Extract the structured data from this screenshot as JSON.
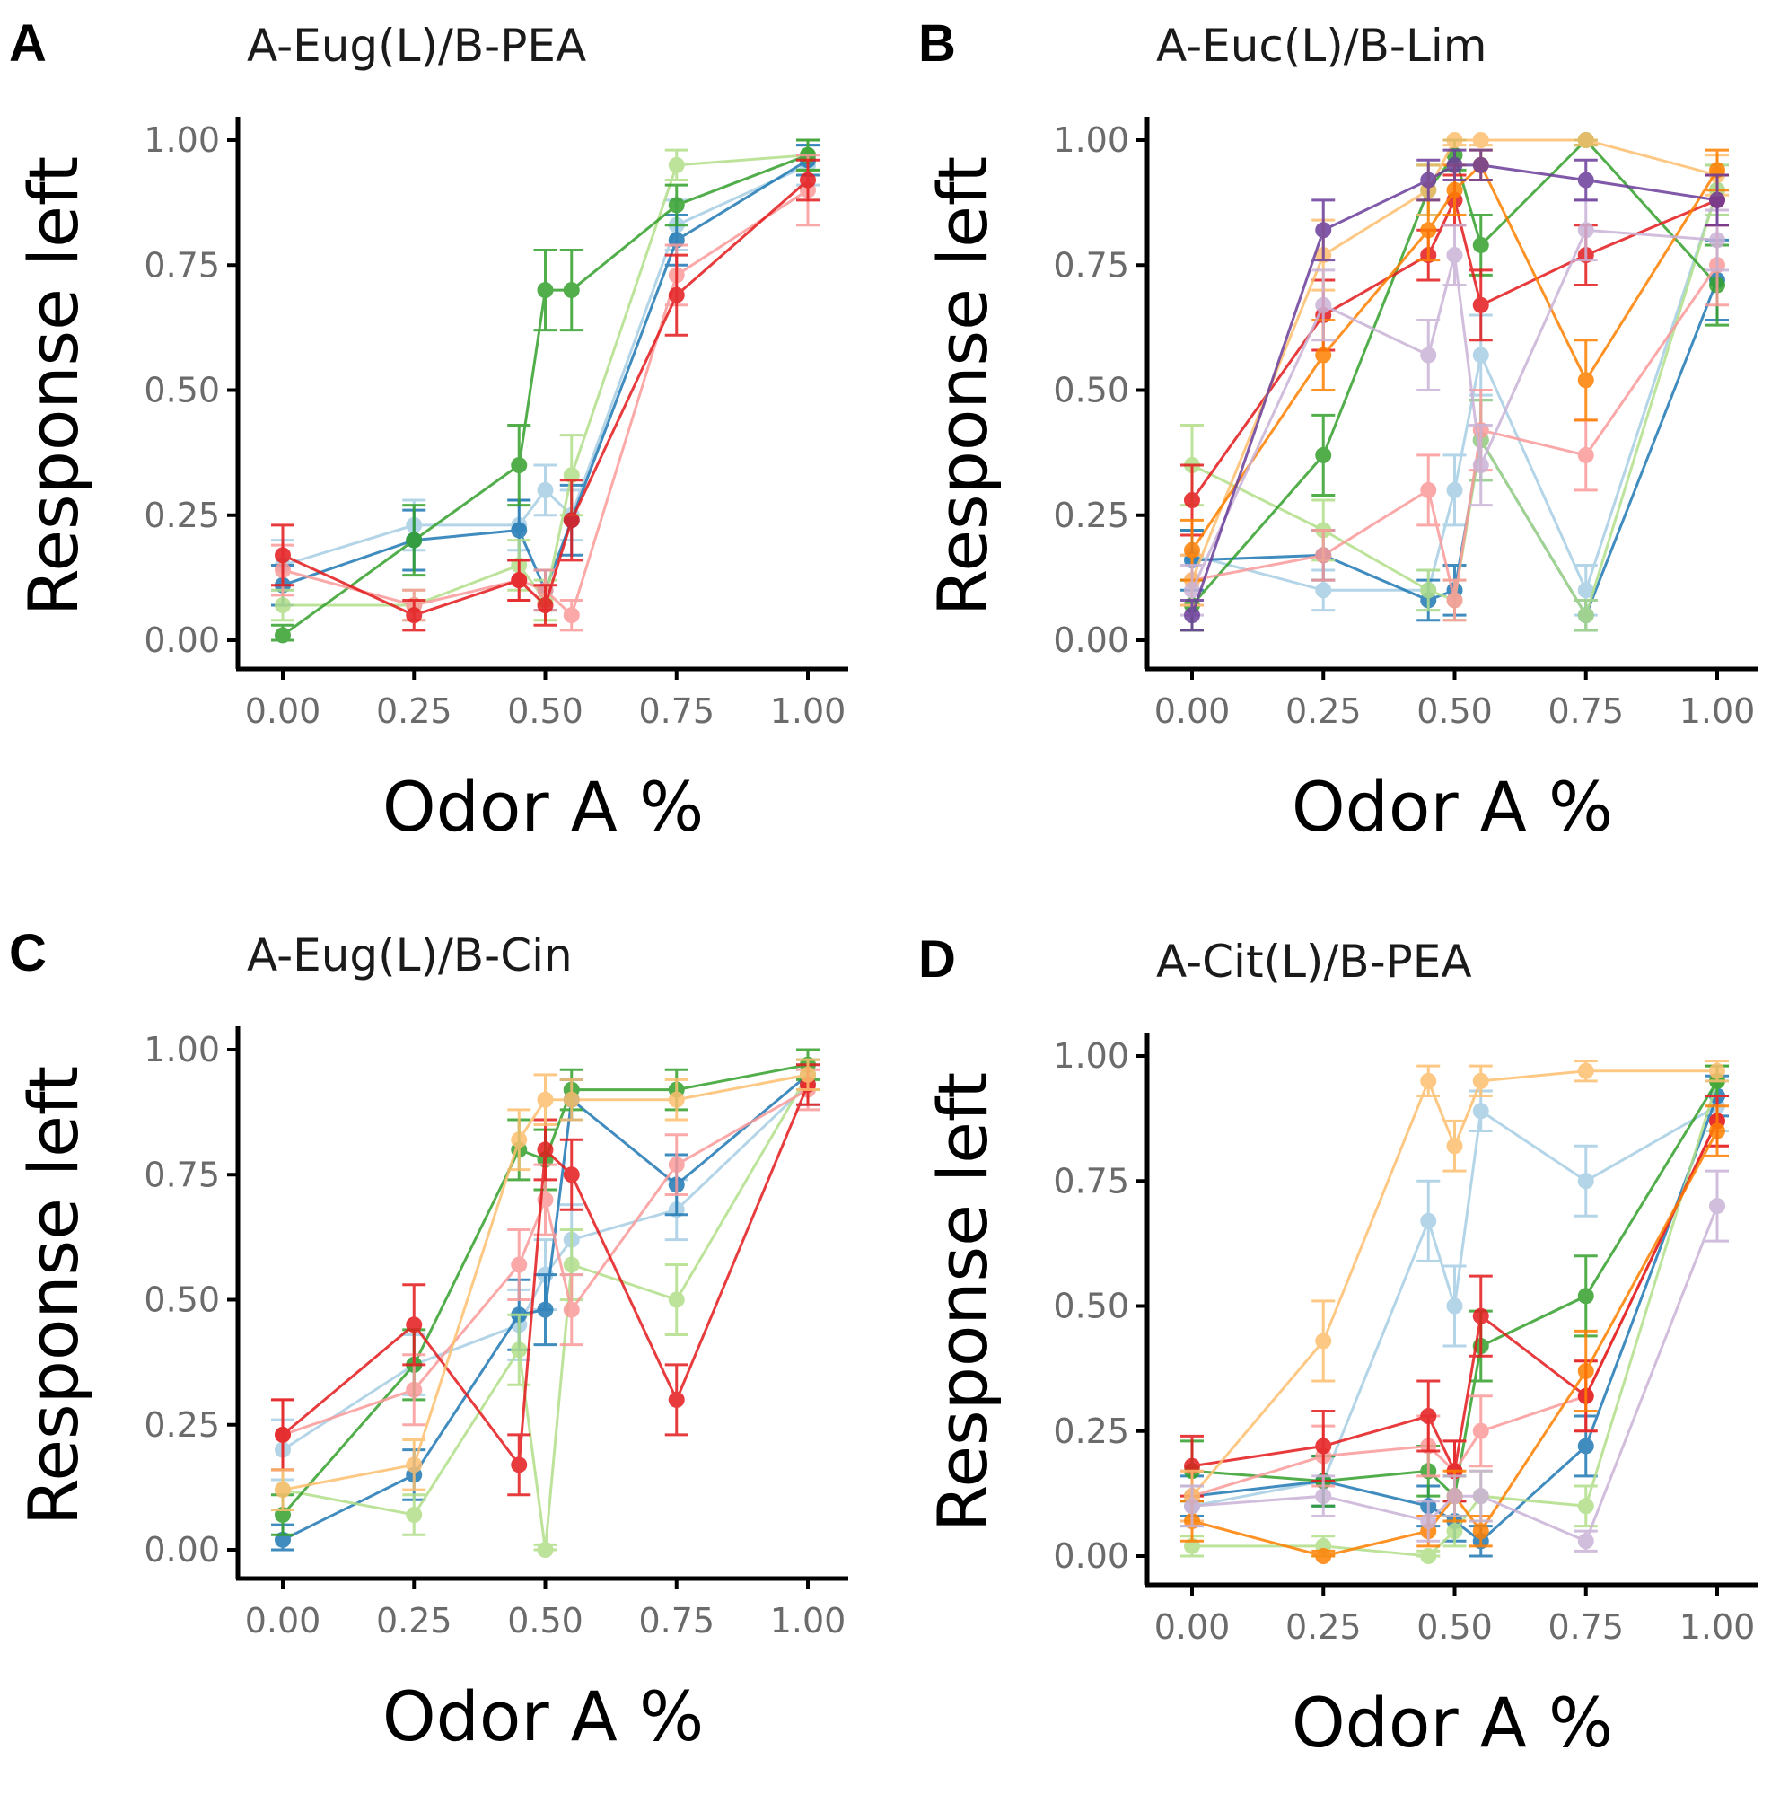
{
  "chart_data": [
    {
      "panel_label": "A",
      "type": "line",
      "title": "A-Eug(L)/B-PEA",
      "xlabel": "Odor A %",
      "ylabel": "Response left",
      "xlim": [
        0,
        1
      ],
      "ylim": [
        0,
        1
      ],
      "x_ticks": [
        "0.00",
        "0.25",
        "0.50",
        "0.75",
        "1.00"
      ],
      "y_ticks": [
        "0.00",
        "0.25",
        "0.50",
        "0.75",
        "1.00"
      ],
      "x": [
        0,
        0.25,
        0.45,
        0.5,
        0.55,
        0.75,
        1.0
      ],
      "series": [
        {
          "name": "light blue",
          "color": "#a6cee3",
          "values": [
            0.15,
            0.23,
            0.23,
            0.3,
            0.25,
            0.83,
            0.95
          ],
          "err": [
            0.05,
            0.05,
            0.05,
            0.05,
            0.05,
            0.05,
            0.04
          ]
        },
        {
          "name": "blue",
          "color": "#1f78b4",
          "values": [
            0.11,
            0.2,
            0.22,
            0.1,
            0.24,
            0.8,
            0.96
          ],
          "err": [
            0.04,
            0.06,
            0.06,
            0.04,
            0.07,
            0.05,
            0.03
          ]
        },
        {
          "name": "light green",
          "color": "#b2df8a",
          "values": [
            0.07,
            0.07,
            0.15,
            0.08,
            0.33,
            0.95,
            0.97
          ],
          "err": [
            0.03,
            0.03,
            0.05,
            0.04,
            0.08,
            0.03,
            0.03
          ]
        },
        {
          "name": "green",
          "color": "#33a02c",
          "values": [
            0.01,
            0.2,
            0.35,
            0.7,
            0.7,
            0.87,
            0.97
          ],
          "err": [
            0.02,
            0.07,
            0.08,
            0.08,
            0.08,
            0.04,
            0.03
          ]
        },
        {
          "name": "pink",
          "color": "#fb9a99",
          "values": [
            0.14,
            0.07,
            0.12,
            0.1,
            0.05,
            0.73,
            0.9
          ],
          "err": [
            0.05,
            0.03,
            0.04,
            0.04,
            0.03,
            0.06,
            0.07
          ]
        },
        {
          "name": "red",
          "color": "#e31a1c",
          "values": [
            0.17,
            0.05,
            0.12,
            0.07,
            0.24,
            0.69,
            0.92
          ],
          "err": [
            0.06,
            0.03,
            0.04,
            0.04,
            0.08,
            0.08,
            0.04
          ]
        }
      ]
    },
    {
      "panel_label": "B",
      "type": "line",
      "title": "A-Euc(L)/B-Lim",
      "xlabel": "Odor A %",
      "ylabel": "Response left",
      "xlim": [
        0,
        1
      ],
      "ylim": [
        0,
        1
      ],
      "x_ticks": [
        "0.00",
        "0.25",
        "0.50",
        "0.75",
        "1.00"
      ],
      "y_ticks": [
        "0.00",
        "0.25",
        "0.50",
        "0.75",
        "1.00"
      ],
      "x": [
        0,
        0.25,
        0.45,
        0.5,
        0.55,
        0.75,
        1.0
      ],
      "series": [
        {
          "name": "light blue",
          "color": "#a6cee3",
          "values": [
            0.17,
            0.1,
            0.1,
            0.3,
            0.57,
            0.1,
            0.9
          ],
          "err": [
            0.05,
            0.04,
            0.04,
            0.07,
            0.08,
            0.05,
            0.05
          ]
        },
        {
          "name": "blue",
          "color": "#1f78b4",
          "values": [
            0.16,
            0.17,
            0.08,
            0.1,
            0.4,
            0.05,
            0.72
          ],
          "err": [
            0.06,
            0.05,
            0.04,
            0.05,
            0.08,
            0.03,
            0.08
          ]
        },
        {
          "name": "light green",
          "color": "#b2df8a",
          "values": [
            0.35,
            0.22,
            0.1,
            0.08,
            0.4,
            0.05,
            0.9
          ],
          "err": [
            0.08,
            0.06,
            0.04,
            0.04,
            0.08,
            0.03,
            0.05
          ]
        },
        {
          "name": "green",
          "color": "#33a02c",
          "values": [
            0.07,
            0.37,
            0.9,
            0.97,
            0.79,
            1.0,
            0.71
          ],
          "err": [
            0.05,
            0.08,
            0.05,
            0.03,
            0.06,
            0.01,
            0.08
          ]
        },
        {
          "name": "pink",
          "color": "#fb9a99",
          "values": [
            0.12,
            0.17,
            0.3,
            0.08,
            0.42,
            0.37,
            0.75
          ],
          "err": [
            0.05,
            0.05,
            0.07,
            0.04,
            0.08,
            0.07,
            0.08
          ]
        },
        {
          "name": "red",
          "color": "#e31a1c",
          "values": [
            0.28,
            0.65,
            0.77,
            0.88,
            0.67,
            0.77,
            0.88
          ],
          "err": [
            0.07,
            0.07,
            0.05,
            0.05,
            0.07,
            0.06,
            0.05
          ]
        },
        {
          "name": "light orange",
          "color": "#fdbf6f",
          "values": [
            0.12,
            0.77,
            0.9,
            1.0,
            1.0,
            1.0,
            0.93
          ],
          "err": [
            0.05,
            0.07,
            0.05,
            0.01,
            0.01,
            0.01,
            0.04
          ]
        },
        {
          "name": "orange",
          "color": "#ff7f00",
          "values": [
            0.18,
            0.57,
            0.82,
            0.9,
            0.95,
            0.52,
            0.94
          ],
          "err": [
            0.06,
            0.07,
            0.06,
            0.05,
            0.03,
            0.08,
            0.04
          ]
        },
        {
          "name": "lavender",
          "color": "#cab2d6",
          "values": [
            0.1,
            0.67,
            0.57,
            0.77,
            0.35,
            0.82,
            0.8
          ],
          "err": [
            0.05,
            0.07,
            0.07,
            0.06,
            0.08,
            0.06,
            0.06
          ]
        },
        {
          "name": "purple",
          "color": "#6a3d9a",
          "values": [
            0.05,
            0.82,
            0.92,
            0.95,
            0.95,
            0.92,
            0.88
          ],
          "err": [
            0.03,
            0.06,
            0.04,
            0.03,
            0.03,
            0.04,
            0.05
          ]
        }
      ]
    },
    {
      "panel_label": "C",
      "type": "line",
      "title": "A-Eug(L)/B-Cin",
      "xlabel": "Odor A %",
      "ylabel": "Response left",
      "xlim": [
        0,
        1
      ],
      "ylim": [
        0,
        1
      ],
      "x_ticks": [
        "0.00",
        "0.25",
        "0.50",
        "0.75",
        "1.00"
      ],
      "y_ticks": [
        "0.00",
        "0.25",
        "0.50",
        "0.75",
        "1.00"
      ],
      "x": [
        0,
        0.25,
        0.45,
        0.5,
        0.55,
        0.75,
        1.0
      ],
      "series": [
        {
          "name": "light blue",
          "color": "#a6cee3",
          "values": [
            0.2,
            0.37,
            0.45,
            0.55,
            0.62,
            0.68,
            0.93
          ],
          "err": [
            0.06,
            0.06,
            0.07,
            0.07,
            0.07,
            0.06,
            0.04
          ]
        },
        {
          "name": "blue",
          "color": "#1f78b4",
          "values": [
            0.02,
            0.15,
            0.47,
            0.48,
            0.9,
            0.73,
            0.95
          ],
          "err": [
            0.03,
            0.05,
            0.07,
            0.07,
            0.04,
            0.06,
            0.03
          ]
        },
        {
          "name": "light green",
          "color": "#b2df8a",
          "values": [
            0.12,
            0.07,
            0.4,
            0.0,
            0.57,
            0.5,
            0.95
          ],
          "err": [
            0.04,
            0.04,
            0.07,
            0.01,
            0.07,
            0.07,
            0.03
          ]
        },
        {
          "name": "green",
          "color": "#33a02c",
          "values": [
            0.07,
            0.37,
            0.8,
            0.78,
            0.92,
            0.92,
            0.97
          ],
          "err": [
            0.04,
            0.07,
            0.06,
            0.06,
            0.04,
            0.04,
            0.03
          ]
        },
        {
          "name": "pink",
          "color": "#fb9a99",
          "values": [
            0.23,
            0.32,
            0.57,
            0.7,
            0.48,
            0.77,
            0.92
          ],
          "err": [
            0.07,
            0.07,
            0.07,
            0.07,
            0.07,
            0.06,
            0.04
          ]
        },
        {
          "name": "red",
          "color": "#e31a1c",
          "values": [
            0.23,
            0.45,
            0.17,
            0.8,
            0.75,
            0.3,
            0.93
          ],
          "err": [
            0.07,
            0.08,
            0.06,
            0.06,
            0.07,
            0.07,
            0.04
          ]
        },
        {
          "name": "light orange",
          "color": "#fdbf6f",
          "values": [
            0.12,
            0.17,
            0.82,
            0.9,
            0.9,
            0.9,
            0.95
          ],
          "err": [
            0.04,
            0.05,
            0.06,
            0.05,
            0.04,
            0.04,
            0.03
          ]
        }
      ]
    },
    {
      "panel_label": "D",
      "type": "line",
      "title": "A-Cit(L)/B-PEA",
      "xlabel": "Odor A %",
      "ylabel": "Response left",
      "xlim": [
        0,
        1
      ],
      "ylim": [
        0,
        1
      ],
      "x_ticks": [
        "0.00",
        "0.25",
        "0.50",
        "0.75",
        "1.00"
      ],
      "y_ticks": [
        "0.00",
        "0.25",
        "0.50",
        "0.75",
        "1.00"
      ],
      "x": [
        0,
        0.25,
        0.45,
        0.5,
        0.55,
        0.75,
        1.0
      ],
      "series": [
        {
          "name": "light blue",
          "color": "#a6cee3",
          "values": [
            0.1,
            0.15,
            0.67,
            0.5,
            0.89,
            0.75,
            0.9
          ],
          "err": [
            0.04,
            0.05,
            0.08,
            0.08,
            0.04,
            0.07,
            0.05
          ]
        },
        {
          "name": "blue",
          "color": "#1f78b4",
          "values": [
            0.12,
            0.15,
            0.1,
            0.07,
            0.03,
            0.22,
            0.92
          ],
          "err": [
            0.04,
            0.05,
            0.04,
            0.04,
            0.03,
            0.06,
            0.04
          ]
        },
        {
          "name": "light green",
          "color": "#b2df8a",
          "values": [
            0.02,
            0.02,
            0.0,
            0.05,
            0.12,
            0.1,
            0.95
          ],
          "err": [
            0.02,
            0.02,
            0.01,
            0.03,
            0.05,
            0.04,
            0.03
          ]
        },
        {
          "name": "green",
          "color": "#33a02c",
          "values": [
            0.17,
            0.15,
            0.17,
            0.12,
            0.42,
            0.52,
            0.95
          ],
          "err": [
            0.06,
            0.05,
            0.05,
            0.04,
            0.07,
            0.08,
            0.03
          ]
        },
        {
          "name": "pink",
          "color": "#fb9a99",
          "values": [
            0.12,
            0.2,
            0.22,
            0.17,
            0.25,
            0.32,
            0.87
          ],
          "err": [
            0.05,
            0.06,
            0.06,
            0.06,
            0.07,
            0.07,
            0.05
          ]
        },
        {
          "name": "red",
          "color": "#e31a1c",
          "values": [
            0.18,
            0.22,
            0.28,
            0.17,
            0.48,
            0.32,
            0.87
          ],
          "err": [
            0.06,
            0.07,
            0.07,
            0.06,
            0.08,
            0.07,
            0.05
          ]
        },
        {
          "name": "light orange",
          "color": "#fdbf6f",
          "values": [
            0.12,
            0.43,
            0.95,
            0.82,
            0.95,
            0.97,
            0.97
          ],
          "err": [
            0.05,
            0.08,
            0.03,
            0.05,
            0.03,
            0.02,
            0.02
          ]
        },
        {
          "name": "orange",
          "color": "#ff7f00",
          "values": [
            0.07,
            0.0,
            0.05,
            0.12,
            0.05,
            0.37,
            0.85
          ],
          "err": [
            0.04,
            0.01,
            0.03,
            0.05,
            0.03,
            0.08,
            0.05
          ]
        },
        {
          "name": "lavender",
          "color": "#cab2d6",
          "values": [
            0.1,
            0.12,
            0.07,
            0.12,
            0.12,
            0.03,
            0.7
          ],
          "err": [
            0.04,
            0.04,
            0.04,
            0.04,
            0.05,
            0.02,
            0.07
          ]
        }
      ]
    }
  ]
}
